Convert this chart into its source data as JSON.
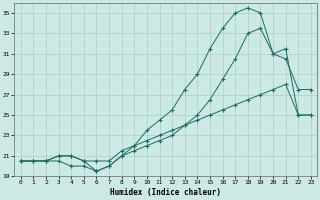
{
  "xlabel": "Humidex (Indice chaleur)",
  "xlim": [
    -0.5,
    23.5
  ],
  "ylim": [
    19,
    36
  ],
  "yticks": [
    19,
    21,
    23,
    25,
    27,
    29,
    31,
    33,
    35
  ],
  "xticks": [
    0,
    1,
    2,
    3,
    4,
    5,
    6,
    7,
    8,
    9,
    10,
    11,
    12,
    13,
    14,
    15,
    16,
    17,
    18,
    19,
    20,
    21,
    22,
    23
  ],
  "background_color": "#cce9e5",
  "grid_color": "#aacfcc",
  "line_color": "#1e6b5e",
  "line1_y": [
    20.5,
    20.5,
    20.5,
    21.0,
    21.0,
    20.5,
    19.5,
    20.0,
    21.0,
    22.0,
    23.5,
    24.5,
    25.5,
    27.5,
    29.0,
    31.5,
    33.5,
    35.0,
    35.5,
    35.0,
    31.0,
    30.5,
    27.5,
    27.5
  ],
  "line2_y": [
    20.5,
    20.5,
    20.5,
    20.5,
    20.0,
    20.0,
    19.5,
    20.0,
    21.0,
    21.5,
    22.0,
    22.5,
    23.0,
    24.0,
    25.0,
    26.5,
    28.5,
    30.5,
    33.0,
    33.5,
    31.0,
    31.5,
    25.0,
    25.0
  ],
  "line3_y": [
    20.5,
    20.5,
    20.5,
    21.0,
    21.0,
    20.5,
    20.5,
    20.5,
    21.5,
    22.0,
    22.5,
    23.0,
    23.5,
    24.0,
    24.5,
    25.0,
    25.5,
    26.0,
    26.5,
    27.0,
    27.5,
    28.0,
    25.0,
    25.0
  ]
}
